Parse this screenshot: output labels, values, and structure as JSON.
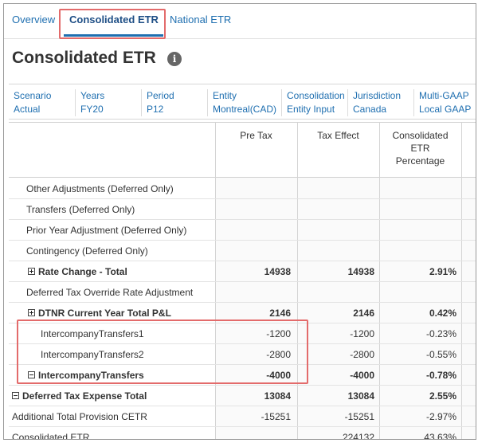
{
  "tabs": [
    {
      "label": "Overview"
    },
    {
      "label": "Consolidated ETR"
    },
    {
      "label": "National ETR"
    }
  ],
  "page": {
    "title": "Consolidated ETR",
    "info_icon": "info-icon"
  },
  "pov": [
    {
      "label": "Scenario",
      "value": "Actual"
    },
    {
      "label": "Years",
      "value": "FY20"
    },
    {
      "label": "Period",
      "value": "P12"
    },
    {
      "label": "Entity",
      "value": "Montreal(CAD)"
    },
    {
      "label": "Consolidation",
      "value": "Entity Input"
    },
    {
      "label": "Jurisdiction",
      "value": "Canada"
    },
    {
      "label": "Multi-GAAP",
      "value": "Local GAAP"
    }
  ],
  "columns": {
    "pre_tax": "Pre Tax",
    "tax_effect": "Tax Effect",
    "cetr_line1": "Consolidated",
    "cetr_line2": "ETR",
    "cetr_line3": "Percentage"
  },
  "rows": [
    {
      "label": "Other Adjustments (Deferred Only)",
      "pre_tax": "",
      "tax_effect": "",
      "pct": ""
    },
    {
      "label": "Transfers (Deferred Only)",
      "pre_tax": "",
      "tax_effect": "",
      "pct": ""
    },
    {
      "label": "Prior Year Adjustment (Deferred Only)",
      "pre_tax": "",
      "tax_effect": "",
      "pct": ""
    },
    {
      "label": "Contingency (Deferred Only)",
      "pre_tax": "",
      "tax_effect": "",
      "pct": ""
    },
    {
      "label": "Rate Change - Total",
      "pre_tax": "14938",
      "tax_effect": "14938",
      "pct": "2.91%"
    },
    {
      "label": "Deferred Tax Override Rate Adjustment",
      "pre_tax": "",
      "tax_effect": "",
      "pct": ""
    },
    {
      "label": "DTNR Current Year Total P&L",
      "pre_tax": "2146",
      "tax_effect": "2146",
      "pct": "0.42%"
    },
    {
      "label": "IntercompanyTransfers1",
      "pre_tax": "-1200",
      "tax_effect": "-1200",
      "pct": "-0.23%"
    },
    {
      "label": "IntercompanyTransfers2",
      "pre_tax": "-2800",
      "tax_effect": "-2800",
      "pct": "-0.55%"
    },
    {
      "label": "IntercompanyTransfers",
      "pre_tax": "-4000",
      "tax_effect": "-4000",
      "pct": "-0.78%"
    },
    {
      "label": "Deferred Tax Expense Total",
      "pre_tax": "13084",
      "tax_effect": "13084",
      "pct": "2.55%"
    },
    {
      "label": "Additional Total Provision CETR",
      "pre_tax": "-15251",
      "tax_effect": "-15251",
      "pct": "-2.97%"
    },
    {
      "label": "Consolidated ETR",
      "pre_tax": "",
      "tax_effect": "224132",
      "pct": "43.63%"
    }
  ],
  "colors": {
    "link": "#1f6fb0",
    "highlight": "#e36b6b"
  }
}
